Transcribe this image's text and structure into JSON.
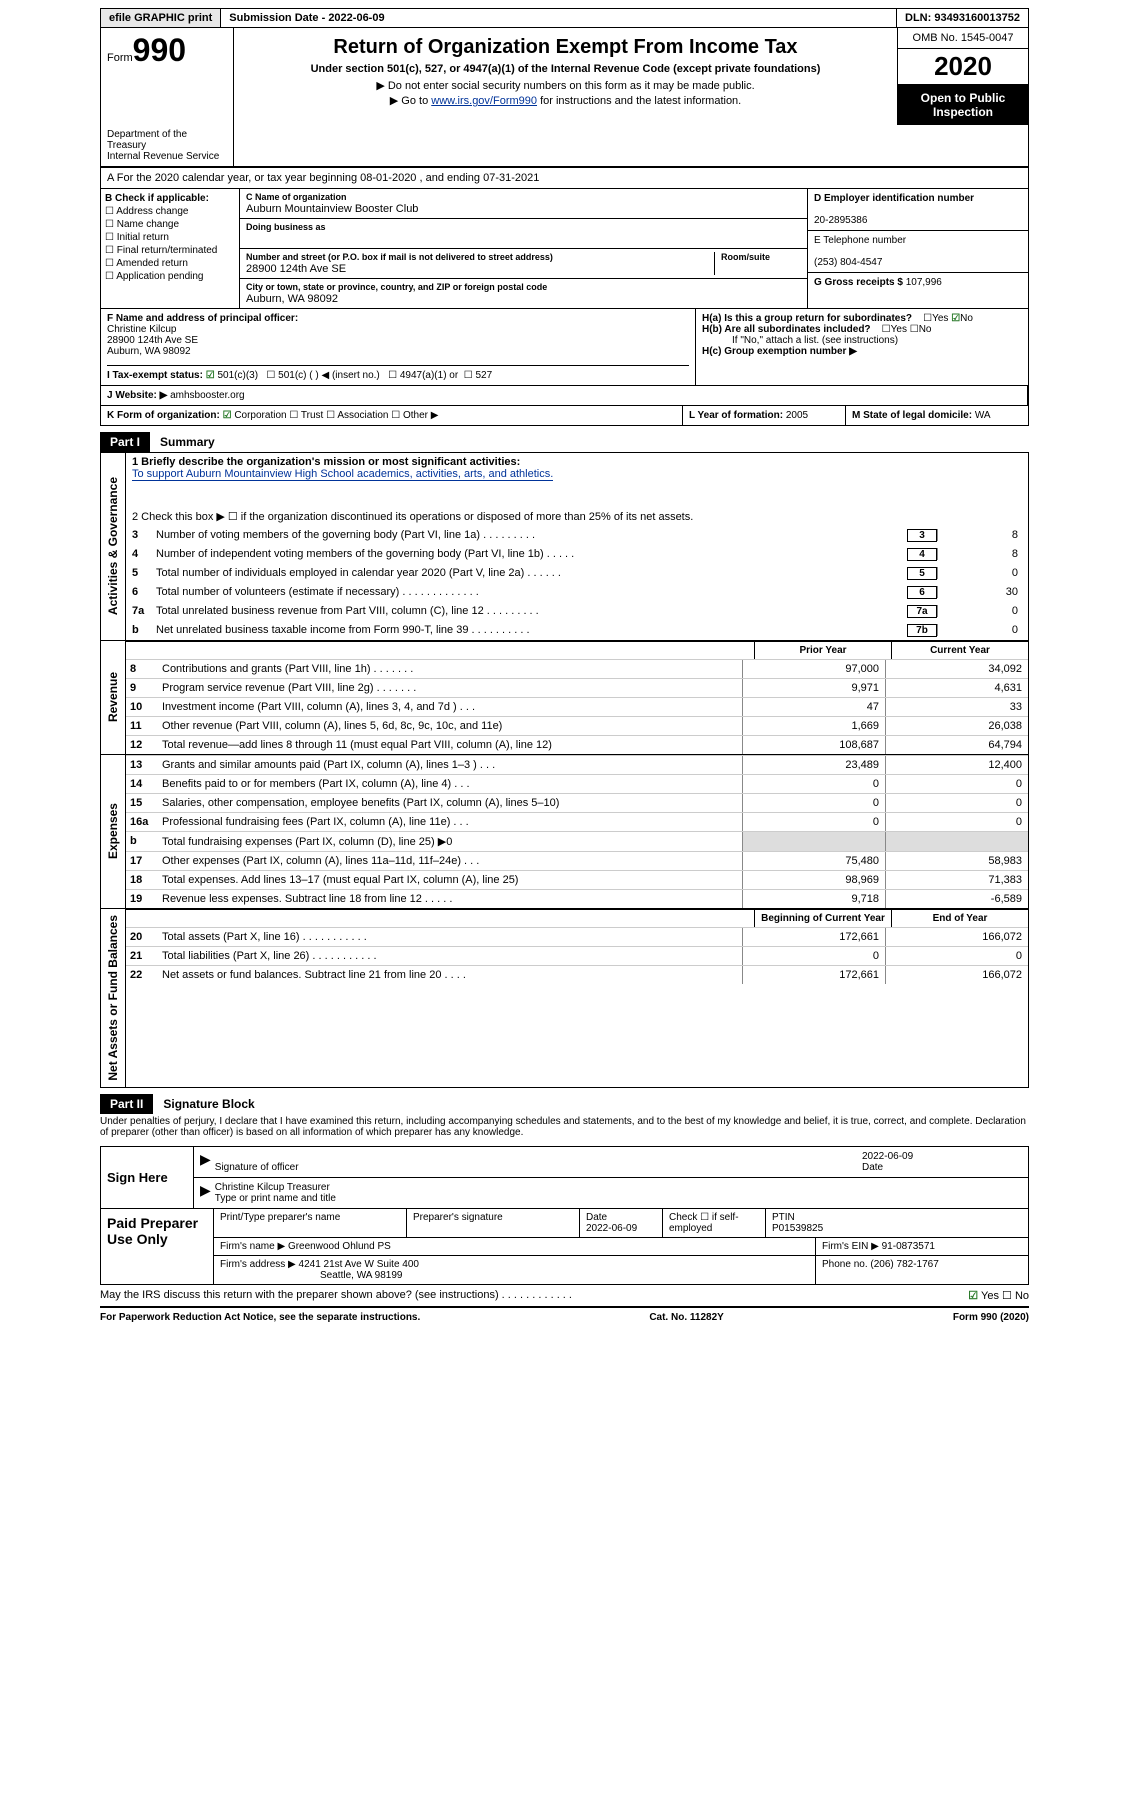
{
  "topbar": {
    "efile": "efile GRAPHIC print",
    "submission": "Submission Date - 2022-06-09",
    "dln": "DLN: 93493160013752"
  },
  "header": {
    "form": "Form",
    "num990": "990",
    "title": "Return of Organization Exempt From Income Tax",
    "sub1": "Under section 501(c), 527, or 4947(a)(1) of the Internal Revenue Code (except private foundations)",
    "sub2": "▶ Do not enter social security numbers on this form as it may be made public.",
    "sub3_a": "▶ Go to ",
    "sub3_link": "www.irs.gov/Form990",
    "sub3_b": " for instructions and the latest information.",
    "omb": "OMB No. 1545-0047",
    "year": "2020",
    "public1": "Open to Public",
    "public2": "Inspection",
    "dept1": "Department of the Treasury",
    "dept2": "Internal Revenue Service"
  },
  "sectionA": {
    "text": "A   For the 2020 calendar year, or tax year beginning 08-01-2020     , and ending 07-31-2021"
  },
  "checkB": {
    "label": "B Check if applicable:",
    "items": [
      "Address change",
      "Name change",
      "Initial return",
      "Final return/terminated",
      "Amended return",
      "Application pending"
    ]
  },
  "org": {
    "c_label": "C Name of organization",
    "name": "Auburn Mountainview Booster Club",
    "dba_label": "Doing business as",
    "dba": "",
    "addr_label": "Number and street (or P.O. box if mail is not delivered to street address)",
    "room_label": "Room/suite",
    "addr": "28900 124th Ave SE",
    "city_label": "City or town, state or province, country, and ZIP or foreign postal code",
    "city": "Auburn, WA  98092"
  },
  "right": {
    "ein_label": "D Employer identification number",
    "ein": "20-2895386",
    "phone_label": "E Telephone number",
    "phone": "(253) 804-4547",
    "gross_label": "G Gross receipts $",
    "gross": "107,996"
  },
  "officer": {
    "label": "F  Name and address of principal officer:",
    "name": "Christine Kilcup",
    "addr1": "28900 124th Ave SE",
    "addr2": "Auburn, WA  98092"
  },
  "h": {
    "a": "H(a)  Is this a group return for subordinates?",
    "b": "H(b)  Are all subordinates included?",
    "note": "If \"No,\" attach a list. (see instructions)",
    "c": "H(c)  Group exemption number ▶",
    "yes": "Yes",
    "no": "No"
  },
  "status": {
    "label": "I    Tax-exempt status:",
    "c3": "501(c)(3)",
    "c": "501(c) (  ) ◀ (insert no.)",
    "a1": "4947(a)(1) or",
    "s527": "527"
  },
  "website": {
    "label": "J   Website: ▶",
    "val": "amhsbooster.org"
  },
  "k": {
    "label": "K Form of organization:",
    "corp": "Corporation",
    "trust": "Trust",
    "assoc": "Association",
    "other": "Other ▶"
  },
  "lm": {
    "l_label": "L Year of formation:",
    "l_val": "2005",
    "m_label": "M State of legal domicile:",
    "m_val": "WA"
  },
  "part1": {
    "num": "Part I",
    "title": "Summary"
  },
  "summary": {
    "line1_lbl": "1   Briefly describe the organization's mission or most significant activities:",
    "line1_val": "To support Auburn Mountainview High School academics, activities, arts, and athletics.",
    "line2": "2   Check this box ▶ ☐  if the organization discontinued its operations or disposed of more than 25% of its net assets.",
    "rows": [
      {
        "n": "3",
        "t": "Number of voting members of the governing body (Part VI, line 1a)   .    .    .    .    .    .    .    .    .",
        "b": "3",
        "v": "8"
      },
      {
        "n": "4",
        "t": "Number of independent voting members of the governing body (Part VI, line 1b)   .    .    .    .    .",
        "b": "4",
        "v": "8"
      },
      {
        "n": "5",
        "t": "Total number of individuals employed in calendar year 2020 (Part V, line 2a)   .    .    .    .    .    .",
        "b": "5",
        "v": "0"
      },
      {
        "n": "6",
        "t": "Total number of volunteers (estimate if necessary)   .    .    .    .    .    .    .    .    .    .    .    .    .",
        "b": "6",
        "v": "30"
      },
      {
        "n": "7a",
        "t": "Total unrelated business revenue from Part VIII, column (C), line 12   .    .    .    .    .    .    .    .    .",
        "b": "7a",
        "v": "0"
      },
      {
        "n": "b",
        "t": "Net unrelated business taxable income from Form 990-T, line 39   .    .    .    .    .    .    .    .    .    .",
        "b": "7b",
        "v": "0"
      }
    ]
  },
  "revHead": {
    "prior": "Prior Year",
    "current": "Current Year"
  },
  "revenue": [
    {
      "n": "8",
      "t": "Contributions and grants (Part VIII, line 1h)   .    .    .    .    .    .    .",
      "pv": "97,000",
      "cv": "34,092"
    },
    {
      "n": "9",
      "t": "Program service revenue (Part VIII, line 2g)   .    .    .    .    .    .    .",
      "pv": "9,971",
      "cv": "4,631"
    },
    {
      "n": "10",
      "t": "Investment income (Part VIII, column (A), lines 3, 4, and 7d )   .    .    .",
      "pv": "47",
      "cv": "33"
    },
    {
      "n": "11",
      "t": "Other revenue (Part VIII, column (A), lines 5, 6d, 8c, 9c, 10c, and 11e)",
      "pv": "1,669",
      "cv": "26,038"
    },
    {
      "n": "12",
      "t": "Total revenue—add lines 8 through 11 (must equal Part VIII, column (A), line 12)",
      "pv": "108,687",
      "cv": "64,794"
    }
  ],
  "expenses": [
    {
      "n": "13",
      "t": "Grants and similar amounts paid (Part IX, column (A), lines 1–3 )   .    .    .",
      "pv": "23,489",
      "cv": "12,400"
    },
    {
      "n": "14",
      "t": "Benefits paid to or for members (Part IX, column (A), line 4)   .    .    .",
      "pv": "0",
      "cv": "0"
    },
    {
      "n": "15",
      "t": "Salaries, other compensation, employee benefits (Part IX, column (A), lines 5–10)",
      "pv": "0",
      "cv": "0"
    },
    {
      "n": "16a",
      "t": "Professional fundraising fees (Part IX, column (A), line 11e)   .    .    .",
      "pv": "0",
      "cv": "0"
    },
    {
      "n": "b",
      "t": "Total fundraising expenses (Part IX, column (D), line 25) ▶0",
      "pv": "",
      "cv": "",
      "shade": true
    },
    {
      "n": "17",
      "t": "Other expenses (Part IX, column (A), lines 11a–11d, 11f–24e)   .    .    .",
      "pv": "75,480",
      "cv": "58,983"
    },
    {
      "n": "18",
      "t": "Total expenses. Add lines 13–17 (must equal Part IX, column (A), line 25)",
      "pv": "98,969",
      "cv": "71,383"
    },
    {
      "n": "19",
      "t": "Revenue less expenses. Subtract line 18 from line 12   .    .    .    .    .",
      "pv": "9,718",
      "cv": "-6,589"
    }
  ],
  "netHead": {
    "beg": "Beginning of Current Year",
    "end": "End of Year"
  },
  "net": [
    {
      "n": "20",
      "t": "Total assets (Part X, line 16)   .    .    .    .    .    .    .    .    .    .    .",
      "pv": "172,661",
      "cv": "166,072"
    },
    {
      "n": "21",
      "t": "Total liabilities (Part X, line 26)   .    .    .    .    .    .    .    .    .    .    .",
      "pv": "0",
      "cv": "0"
    },
    {
      "n": "22",
      "t": "Net assets or fund balances. Subtract line 21 from line 20   .    .    .    .",
      "pv": "172,661",
      "cv": "166,072"
    }
  ],
  "sides": {
    "gov": "Activities & Governance",
    "rev": "Revenue",
    "exp": "Expenses",
    "net": "Net Assets or Fund Balances"
  },
  "part2": {
    "num": "Part II",
    "title": "Signature Block"
  },
  "perjury": "Under penalties of perjury, I declare that I have examined this return, including accompanying schedules and statements, and to the best of my knowledge and belief, it is true, correct, and complete. Declaration of preparer (other than officer) is based on all information of which preparer has any knowledge.",
  "sign": {
    "here": "Sign Here",
    "sig_label": "Signature of officer",
    "date_label": "Date",
    "date": "2022-06-09",
    "name": "Christine Kilcup Treasurer",
    "type_label": "Type or print name and title"
  },
  "prep": {
    "title": "Paid Preparer Use Only",
    "h1": "Print/Type preparer's name",
    "h2": "Preparer's signature",
    "h3": "Date",
    "h3v": "2022-06-09",
    "h4": "Check ☐ if self-employed",
    "h5": "PTIN",
    "ptin": "P01539825",
    "firm_label": "Firm's name    ▶",
    "firm": "Greenwood Ohlund PS",
    "ein_label": "Firm's EIN ▶",
    "ein": "91-0873571",
    "addr_label": "Firm's address ▶",
    "addr1": "4241 21st Ave W Suite 400",
    "addr2": "Seattle, WA  98199",
    "phone_label": "Phone no.",
    "phone": "(206) 782-1767"
  },
  "discuss": {
    "txt": "May the IRS discuss this return with the preparer shown above? (see instructions)   .    .    .    .    .    .    .    .    .    .    .    .",
    "yes": "Yes",
    "no": "No"
  },
  "footer": {
    "left": "For Paperwork Reduction Act Notice, see the separate instructions.",
    "mid": "Cat. No. 11282Y",
    "right": "Form 990 (2020)"
  }
}
